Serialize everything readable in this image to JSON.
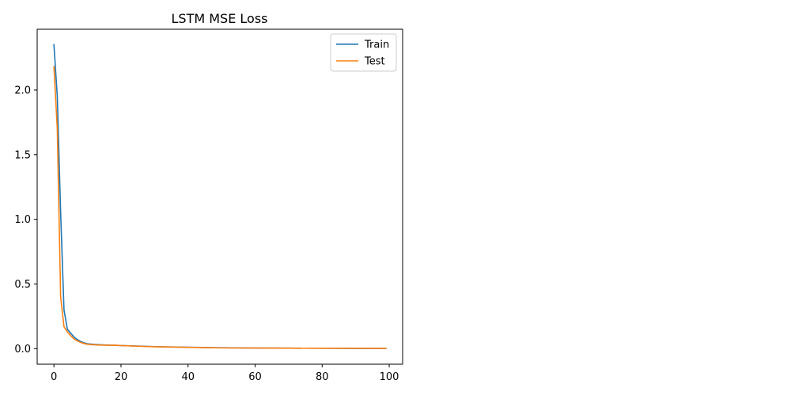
{
  "chart_data": {
    "type": "line",
    "title": "LSTM MSE Loss",
    "xlabel": "",
    "ylabel": "",
    "xlim": [
      -5,
      104
    ],
    "ylim": [
      -0.12,
      2.47
    ],
    "xticks": [
      0,
      20,
      40,
      60,
      80,
      100
    ],
    "yticks": [
      0.0,
      0.5,
      1.0,
      1.5,
      2.0
    ],
    "xtick_labels": [
      "0",
      "20",
      "40",
      "60",
      "80",
      "100"
    ],
    "ytick_labels": [
      "0.0",
      "0.5",
      "1.0",
      "1.5",
      "2.0"
    ],
    "grid": false,
    "legend_position": "top-right",
    "series": [
      {
        "name": "Train",
        "color": "#1f77b4",
        "x": [
          0,
          1,
          2,
          3,
          4,
          5,
          6,
          7,
          8,
          9,
          10,
          12,
          14,
          16,
          18,
          20,
          25,
          30,
          40,
          50,
          60,
          70,
          80,
          90,
          99
        ],
        "y": [
          2.35,
          1.95,
          1.05,
          0.3,
          0.15,
          0.12,
          0.09,
          0.07,
          0.055,
          0.045,
          0.038,
          0.033,
          0.03,
          0.028,
          0.026,
          0.024,
          0.02,
          0.016,
          0.011,
          0.007,
          0.005,
          0.004,
          0.003,
          0.002,
          0.002
        ]
      },
      {
        "name": "Test",
        "color": "#ff7f0e",
        "x": [
          0,
          1,
          2,
          3,
          4,
          5,
          6,
          7,
          8,
          9,
          10,
          12,
          14,
          16,
          18,
          20,
          25,
          30,
          40,
          50,
          60,
          70,
          80,
          90,
          99
        ],
        "y": [
          2.18,
          1.7,
          0.4,
          0.17,
          0.13,
          0.1,
          0.075,
          0.06,
          0.048,
          0.04,
          0.034,
          0.03,
          0.028,
          0.026,
          0.027,
          0.024,
          0.019,
          0.015,
          0.01,
          0.006,
          0.005,
          0.004,
          0.003,
          0.003,
          0.002
        ]
      }
    ]
  }
}
